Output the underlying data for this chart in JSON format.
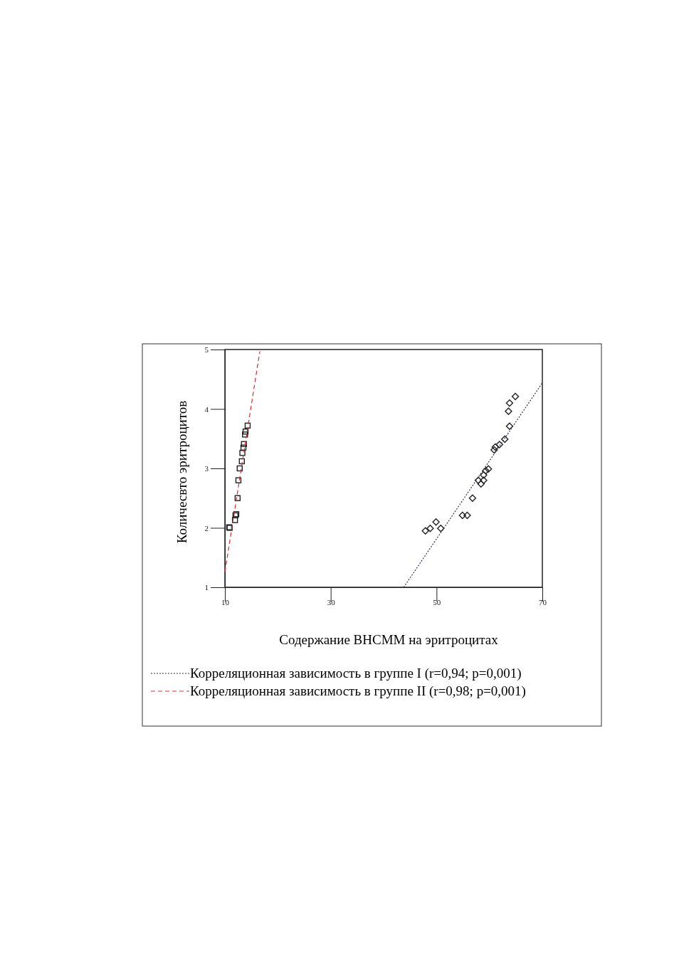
{
  "chart_data": {
    "type": "scatter",
    "xlabel": "Содержание ВНСММ на эритроцитах",
    "ylabel": "Количесвто эритроцитов",
    "xlim": [
      10,
      70
    ],
    "xticks": [
      10,
      30,
      50,
      70
    ],
    "ylim": [
      1,
      5
    ],
    "yticks": [
      1,
      2,
      3,
      4,
      5
    ],
    "grid": false,
    "legend": "bottom",
    "series": [
      {
        "type": "scatter",
        "marker": "diamond",
        "color": "#222222",
        "x": [
          47.9,
          48.8,
          49.9,
          50.8,
          54.9,
          55.8,
          56.8,
          57.9,
          58.4,
          58.9,
          58.9,
          59.3,
          59.8,
          60.9,
          61.1,
          61.9,
          62.9,
          63.8,
          63.6,
          63.8,
          64.9
        ],
        "values": [
          1.95,
          1.99,
          2.1,
          1.99,
          2.21,
          2.21,
          2.5,
          2.8,
          2.74,
          2.8,
          2.89,
          2.96,
          2.99,
          3.31,
          3.36,
          3.4,
          3.49,
          3.71,
          3.96,
          4.1,
          4.21
        ]
      },
      {
        "type": "scatter",
        "marker": "square",
        "color": "#222222",
        "x": [
          10.8,
          10.9,
          11.9,
          12.0,
          12.15,
          12.4,
          12.55,
          12.8,
          13.2,
          13.3,
          13.5,
          13.6,
          13.8,
          13.9,
          14.3
        ],
        "values": [
          2.01,
          2.0,
          2.13,
          2.21,
          2.23,
          2.5,
          2.8,
          3.0,
          3.12,
          3.26,
          3.35,
          3.41,
          3.57,
          3.62,
          3.72
        ]
      },
      {
        "type": "line",
        "name": "Корреляционная зависимость в группе I (r=0,94; p=0,001)",
        "marker": "none",
        "line_style": "dotted",
        "color": "#333355",
        "x": [
          43.8,
          70
        ],
        "values": [
          1,
          4.44
        ]
      },
      {
        "type": "line",
        "name": "Корреляционная зависимость в группе II (r=0,98; p=0,001)",
        "marker": "none",
        "line_style": "dashed",
        "color": "#cc3333",
        "x": [
          10,
          16.6
        ],
        "values": [
          1.26,
          4.97
        ]
      }
    ]
  }
}
